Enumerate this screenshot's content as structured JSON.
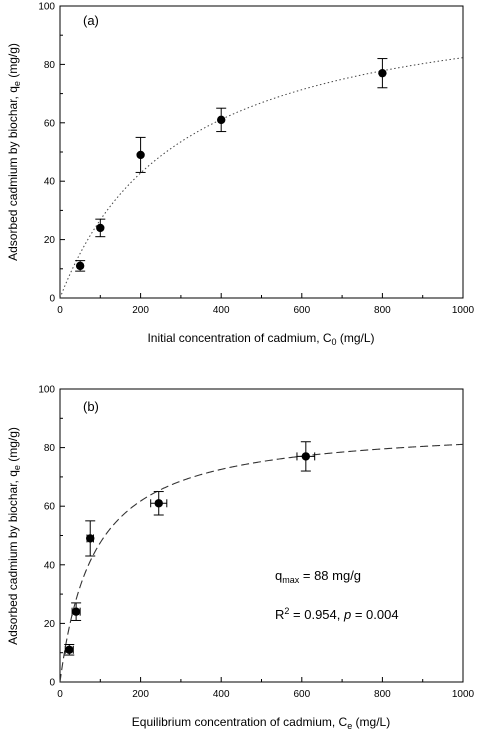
{
  "chart_data": [
    {
      "type": "scatter",
      "panel_label": "(a)",
      "xlabel_parts": [
        "Initial concentration of cadmium, C",
        "0",
        " (mg/L)"
      ],
      "ylabel_parts": [
        "Adsorbed cadmium by biochar, q",
        "e",
        " (mg/g)"
      ],
      "xlim": [
        0,
        1000
      ],
      "ylim": [
        0,
        100
      ],
      "xticks": [
        0,
        200,
        400,
        600,
        800,
        1000
      ],
      "yticks": [
        0,
        20,
        40,
        60,
        80,
        100
      ],
      "grid": false,
      "series": [
        {
          "points": [
            {
              "x": 50,
              "y": 11,
              "yerr": 1.8
            },
            {
              "x": 100,
              "y": 24,
              "yerr": 3
            },
            {
              "x": 200,
              "y": 49,
              "yerr": 6
            },
            {
              "x": 400,
              "y": 61,
              "yerr": 4
            },
            {
              "x": 800,
              "y": 77,
              "yerr": 5
            }
          ]
        }
      ],
      "fit": {
        "style": "dotted",
        "equation": "y = 107*x/(300+x)"
      }
    },
    {
      "type": "scatter",
      "panel_label": "(b)",
      "xlabel_parts": [
        "Equilibrium concentration of cadmium, C",
        "e",
        " (mg/L)"
      ],
      "ylabel_parts": [
        "Adsorbed cadmium by biochar, q",
        "e",
        " (mg/g)"
      ],
      "xlim": [
        0,
        1000
      ],
      "ylim": [
        0,
        100
      ],
      "xticks": [
        0,
        200,
        400,
        600,
        800,
        1000
      ],
      "yticks": [
        0,
        20,
        40,
        60,
        80,
        100
      ],
      "grid": false,
      "series": [
        {
          "points": [
            {
              "x": 23,
              "y": 11,
              "yerr": 1.8,
              "xerr": 10
            },
            {
              "x": 40,
              "y": 24,
              "yerr": 3,
              "xerr": 10
            },
            {
              "x": 75,
              "y": 49,
              "yerr": 6,
              "xerr": 8
            },
            {
              "x": 245,
              "y": 61,
              "yerr": 4,
              "xerr": 20
            },
            {
              "x": 610,
              "y": 77,
              "yerr": 5,
              "xerr": 22
            }
          ]
        }
      ],
      "fit": {
        "style": "dashed",
        "equation": "y = 88*x/(85+x)"
      },
      "annotations": {
        "qmax": {
          "base": "q",
          "sub": "max",
          "rest": " = 88 mg/g"
        },
        "stats": {
          "r": "R",
          "sup": "2",
          "mid": " = 0.954, ",
          "p": "p",
          "end": " = 0.004"
        }
      }
    }
  ]
}
